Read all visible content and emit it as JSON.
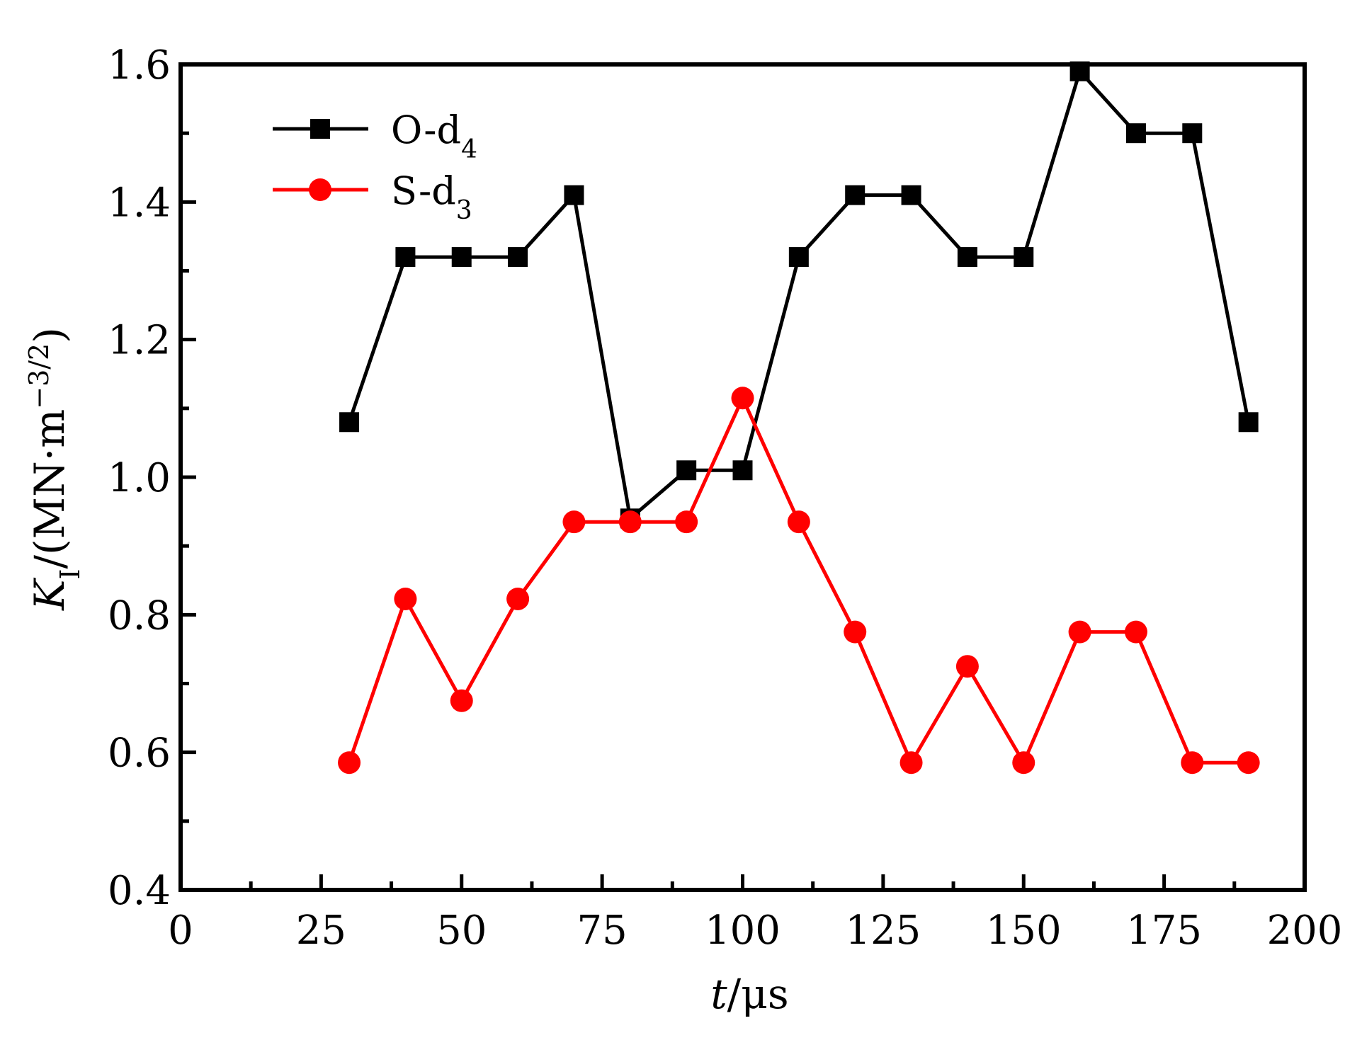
{
  "chart_data": {
    "type": "line",
    "x": [
      30,
      40,
      50,
      60,
      70,
      80,
      90,
      100,
      110,
      120,
      130,
      140,
      150,
      160,
      170,
      180,
      190
    ],
    "series": [
      {
        "name": "O-d",
        "name_subscript": "4",
        "color": "#000000",
        "marker": "square",
        "values": [
          1.08,
          1.32,
          1.32,
          1.32,
          1.41,
          0.94,
          1.01,
          1.01,
          1.32,
          1.41,
          1.41,
          1.32,
          1.32,
          1.59,
          1.5,
          1.5,
          1.08
        ]
      },
      {
        "name": "S-d",
        "name_subscript": "3",
        "color": "#ff0000",
        "marker": "circle",
        "values": [
          0.585,
          0.823,
          0.675,
          0.823,
          0.935,
          0.935,
          0.935,
          1.115,
          0.935,
          0.775,
          0.585,
          0.725,
          0.585,
          0.775,
          0.775,
          0.585,
          0.585
        ]
      }
    ],
    "xlabel": {
      "italic": "t",
      "rest": "/μs"
    },
    "ylabel": {
      "italic": "K",
      "subscript": "I",
      "rest": "/(MN·m",
      "superscript": "−3/2",
      "close": ")"
    },
    "xlim": [
      0,
      200
    ],
    "ylim": [
      0.4,
      1.6
    ],
    "xticks": [
      "0",
      "25",
      "50",
      "75",
      "100",
      "125",
      "150",
      "175",
      "200"
    ],
    "yticks": [
      "0.4",
      "0.6",
      "0.8",
      "1.0",
      "1.2",
      "1.4",
      "1.6"
    ],
    "grid": false,
    "legend_position": "top-left"
  }
}
